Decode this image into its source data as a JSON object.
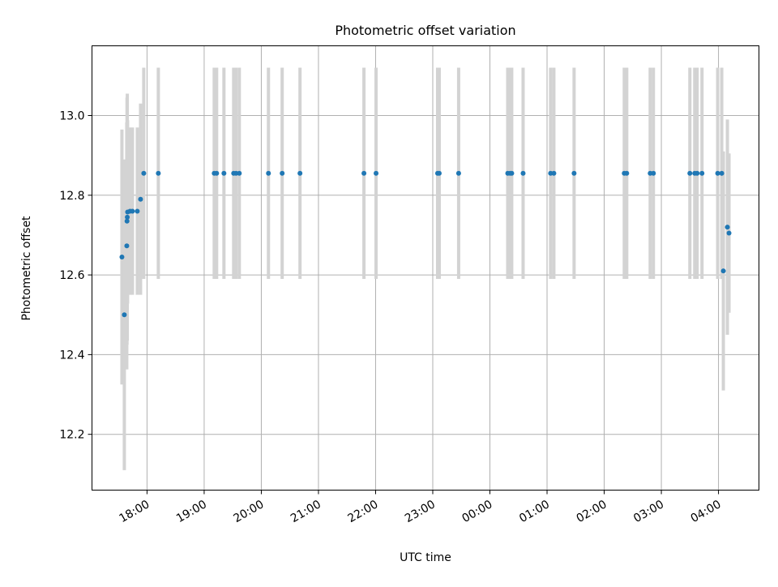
{
  "chart_data": {
    "type": "scatter",
    "title": "Photometric offset variation",
    "xlabel": "UTC time",
    "ylabel": "Photometric offset",
    "x_units": "hours since 00:00 of first night (values > 24 are next day)",
    "xlim": [
      17.037,
      28.708
    ],
    "ylim": [
      12.06,
      13.175
    ],
    "grid": true,
    "x_ticks": [
      {
        "value": 18,
        "label": "18:00"
      },
      {
        "value": 19,
        "label": "19:00"
      },
      {
        "value": 20,
        "label": "20:00"
      },
      {
        "value": 21,
        "label": "21:00"
      },
      {
        "value": 22,
        "label": "22:00"
      },
      {
        "value": 23,
        "label": "23:00"
      },
      {
        "value": 24,
        "label": "00:00"
      },
      {
        "value": 25,
        "label": "01:00"
      },
      {
        "value": 26,
        "label": "02:00"
      },
      {
        "value": 27,
        "label": "03:00"
      },
      {
        "value": 28,
        "label": "04:00"
      }
    ],
    "y_ticks": [
      {
        "value": 12.2,
        "label": "12.2"
      },
      {
        "value": 12.4,
        "label": "12.4"
      },
      {
        "value": 12.6,
        "label": "12.6"
      },
      {
        "value": 12.8,
        "label": "12.8"
      },
      {
        "value": 13.0,
        "label": "13.0"
      }
    ],
    "point_color": "#1f77b4",
    "errorbar_color": "#d3d3d3",
    "points": [
      {
        "x": 17.561,
        "y": 12.645,
        "err": 0.32
      },
      {
        "x": 17.603,
        "y": 12.5,
        "err": 0.39
      },
      {
        "x": 17.646,
        "y": 12.673,
        "err": 0.31
      },
      {
        "x": 17.65,
        "y": 12.735,
        "err": 0.31
      },
      {
        "x": 17.655,
        "y": 12.745,
        "err": 0.31
      },
      {
        "x": 17.66,
        "y": 12.758,
        "err": 0.23
      },
      {
        "x": 17.703,
        "y": 12.76,
        "err": 0.21
      },
      {
        "x": 17.745,
        "y": 12.76,
        "err": 0.21
      },
      {
        "x": 17.83,
        "y": 12.76,
        "err": 0.21
      },
      {
        "x": 17.887,
        "y": 12.79,
        "err": 0.24
      },
      {
        "x": 17.943,
        "y": 12.855,
        "err": 0.265
      },
      {
        "x": 18.198,
        "y": 12.855,
        "err": 0.265
      },
      {
        "x": 19.176,
        "y": 12.855,
        "err": 0.265
      },
      {
        "x": 19.218,
        "y": 12.855,
        "err": 0.265
      },
      {
        "x": 19.346,
        "y": 12.855,
        "err": 0.265
      },
      {
        "x": 19.516,
        "y": 12.855,
        "err": 0.265
      },
      {
        "x": 19.558,
        "y": 12.855,
        "err": 0.265
      },
      {
        "x": 19.615,
        "y": 12.855,
        "err": 0.265
      },
      {
        "x": 20.125,
        "y": 12.855,
        "err": 0.265
      },
      {
        "x": 20.365,
        "y": 12.855,
        "err": 0.265
      },
      {
        "x": 20.677,
        "y": 12.855,
        "err": 0.265
      },
      {
        "x": 21.796,
        "y": 12.855,
        "err": 0.265
      },
      {
        "x": 22.008,
        "y": 12.855,
        "err": 0.265
      },
      {
        "x": 23.085,
        "y": 12.855,
        "err": 0.265
      },
      {
        "x": 23.113,
        "y": 12.855,
        "err": 0.265
      },
      {
        "x": 23.453,
        "y": 12.855,
        "err": 0.265
      },
      {
        "x": 24.312,
        "y": 12.855,
        "err": 0.265
      },
      {
        "x": 24.354,
        "y": 12.855,
        "err": 0.265
      },
      {
        "x": 24.382,
        "y": 12.855,
        "err": 0.265
      },
      {
        "x": 24.581,
        "y": 12.855,
        "err": 0.265
      },
      {
        "x": 25.062,
        "y": 12.855,
        "err": 0.265
      },
      {
        "x": 25.119,
        "y": 12.855,
        "err": 0.265
      },
      {
        "x": 25.473,
        "y": 12.855,
        "err": 0.265
      },
      {
        "x": 26.351,
        "y": 12.855,
        "err": 0.265
      },
      {
        "x": 26.394,
        "y": 12.855,
        "err": 0.265
      },
      {
        "x": 26.805,
        "y": 12.855,
        "err": 0.265
      },
      {
        "x": 26.861,
        "y": 12.855,
        "err": 0.265
      },
      {
        "x": 27.499,
        "y": 12.855,
        "err": 0.265
      },
      {
        "x": 27.584,
        "y": 12.855,
        "err": 0.265
      },
      {
        "x": 27.626,
        "y": 12.855,
        "err": 0.265
      },
      {
        "x": 27.711,
        "y": 12.855,
        "err": 0.265
      },
      {
        "x": 27.986,
        "y": 12.855,
        "err": 0.265
      },
      {
        "x": 28.057,
        "y": 12.855,
        "err": 0.265
      },
      {
        "x": 28.085,
        "y": 12.61,
        "err": 0.3
      },
      {
        "x": 28.156,
        "y": 12.72,
        "err": 0.27
      },
      {
        "x": 28.184,
        "y": 12.705,
        "err": 0.2
      }
    ]
  }
}
